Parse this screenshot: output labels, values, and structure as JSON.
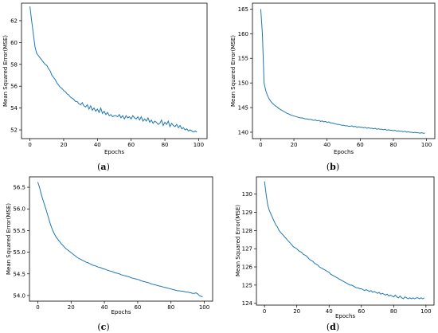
{
  "chart_data": [
    {
      "type": "line",
      "caption": "(a)",
      "xlabel": "Epochs",
      "ylabel": "Mean Squared Error(MSE)",
      "xlim": [
        -5,
        105
      ],
      "ylim": [
        51.2,
        63.6
      ],
      "xticks": [
        0,
        20,
        40,
        60,
        80,
        100
      ],
      "yticks": [
        52,
        54,
        56,
        58,
        60,
        62
      ],
      "series": [
        {
          "color": "#1f77b4",
          "x": [
            0,
            1,
            2,
            3,
            4,
            5,
            6,
            7,
            8,
            9,
            10,
            11,
            12,
            13,
            14,
            15,
            16,
            17,
            18,
            19,
            20,
            21,
            22,
            23,
            24,
            25,
            26,
            27,
            28,
            29,
            30,
            31,
            32,
            33,
            34,
            35,
            36,
            37,
            38,
            39,
            40,
            41,
            42,
            43,
            44,
            45,
            46,
            47,
            48,
            49,
            50,
            51,
            52,
            53,
            54,
            55,
            56,
            57,
            58,
            59,
            60,
            61,
            62,
            63,
            64,
            65,
            66,
            67,
            68,
            69,
            70,
            71,
            72,
            73,
            74,
            75,
            76,
            77,
            78,
            79,
            80,
            81,
            82,
            83,
            84,
            85,
            86,
            87,
            88,
            89,
            90,
            91,
            92,
            93,
            94,
            95,
            96,
            97,
            98,
            99
          ],
          "y": [
            63.3,
            62.0,
            60.8,
            59.6,
            59.0,
            58.8,
            58.6,
            58.4,
            58.2,
            58.0,
            57.9,
            57.6,
            57.4,
            57.0,
            56.8,
            56.6,
            56.3,
            56.1,
            55.9,
            55.8,
            55.6,
            55.5,
            55.3,
            55.2,
            55.0,
            54.9,
            54.8,
            54.6,
            54.6,
            54.4,
            54.3,
            54.5,
            54.2,
            54.1,
            54.3,
            53.9,
            54.2,
            53.8,
            54.0,
            53.7,
            53.9,
            53.6,
            54.0,
            53.5,
            53.7,
            53.4,
            53.6,
            53.3,
            53.4,
            53.2,
            53.3,
            53.3,
            53.2,
            53.4,
            53.1,
            53.3,
            53.0,
            53.3,
            53.1,
            53.2,
            53.0,
            53.3,
            53.1,
            53.0,
            53.2,
            52.9,
            53.2,
            52.8,
            53.0,
            52.8,
            53.1,
            52.7,
            52.9,
            52.6,
            52.8,
            52.7,
            52.5,
            52.6,
            52.9,
            52.4,
            52.7,
            52.5,
            52.8,
            52.3,
            52.6,
            52.4,
            52.3,
            52.5,
            52.2,
            52.4,
            52.1,
            52.2,
            52.0,
            52.1,
            51.9,
            52.0,
            51.9,
            51.8,
            51.9,
            51.8
          ]
        }
      ]
    },
    {
      "type": "line",
      "caption": "(b)",
      "xlabel": "Epochs",
      "ylabel": "Mean Squared Error(MSE)",
      "xlim": [
        -5,
        105
      ],
      "ylim": [
        138.7,
        166.2
      ],
      "xticks": [
        0,
        20,
        40,
        60,
        80,
        100
      ],
      "yticks": [
        140,
        145,
        150,
        155,
        160,
        165
      ],
      "series": [
        {
          "color": "#1f77b4",
          "x": [
            0,
            1,
            2,
            3,
            4,
            5,
            6,
            7,
            8,
            9,
            10,
            11,
            12,
            13,
            14,
            15,
            16,
            17,
            18,
            19,
            20,
            21,
            22,
            23,
            24,
            25,
            26,
            27,
            28,
            29,
            30,
            31,
            32,
            33,
            34,
            35,
            36,
            37,
            38,
            39,
            40,
            41,
            42,
            43,
            44,
            45,
            46,
            47,
            48,
            49,
            50,
            51,
            52,
            53,
            54,
            55,
            56,
            57,
            58,
            59,
            60,
            61,
            62,
            63,
            64,
            65,
            66,
            67,
            68,
            69,
            70,
            71,
            72,
            73,
            74,
            75,
            76,
            77,
            78,
            79,
            80,
            81,
            82,
            83,
            84,
            85,
            86,
            87,
            88,
            89,
            90,
            91,
            92,
            93,
            94,
            95,
            96,
            97,
            98,
            99
          ],
          "y": [
            165.0,
            160.0,
            150.0,
            148.5,
            147.5,
            146.8,
            146.3,
            145.9,
            145.6,
            145.3,
            145.1,
            144.8,
            144.6,
            144.4,
            144.2,
            144.0,
            143.8,
            143.7,
            143.5,
            143.4,
            143.3,
            143.2,
            143.1,
            143.0,
            142.9,
            142.9,
            142.8,
            142.7,
            142.7,
            142.6,
            142.6,
            142.5,
            142.4,
            142.5,
            142.3,
            142.4,
            142.2,
            142.3,
            142.1,
            142.2,
            142.0,
            142.1,
            141.9,
            141.9,
            141.8,
            141.7,
            141.6,
            141.6,
            141.5,
            141.4,
            141.4,
            141.3,
            141.3,
            141.2,
            141.2,
            141.3,
            141.1,
            141.2,
            141.0,
            141.1,
            141.0,
            141.0,
            140.9,
            141.0,
            140.8,
            140.9,
            140.8,
            140.8,
            140.7,
            140.8,
            140.6,
            140.7,
            140.6,
            140.6,
            140.5,
            140.6,
            140.4,
            140.5,
            140.4,
            140.4,
            140.3,
            140.4,
            140.2,
            140.3,
            140.2,
            140.2,
            140.1,
            140.2,
            140.0,
            140.1,
            140.0,
            140.0,
            139.9,
            140.0,
            139.9,
            139.9,
            139.8,
            139.9,
            139.8,
            139.8
          ]
        }
      ]
    },
    {
      "type": "line",
      "caption": "(c)",
      "xlabel": "Epochs",
      "ylabel": "Mean Squared Error(MSE)",
      "xlim": [
        -5,
        105
      ],
      "ylim": [
        53.87,
        56.74
      ],
      "xticks": [
        0,
        20,
        40,
        60,
        80,
        100
      ],
      "yticks": [
        54.0,
        54.5,
        55.0,
        55.5,
        56.0,
        56.5
      ],
      "series": [
        {
          "color": "#1f77b4",
          "x": [
            0,
            1,
            2,
            3,
            4,
            5,
            6,
            7,
            8,
            9,
            10,
            11,
            12,
            13,
            14,
            15,
            16,
            17,
            18,
            19,
            20,
            21,
            22,
            23,
            24,
            25,
            26,
            27,
            28,
            29,
            30,
            31,
            32,
            33,
            34,
            35,
            36,
            37,
            38,
            39,
            40,
            41,
            42,
            43,
            44,
            45,
            46,
            47,
            48,
            49,
            50,
            51,
            52,
            53,
            54,
            55,
            56,
            57,
            58,
            59,
            60,
            61,
            62,
            63,
            64,
            65,
            66,
            67,
            68,
            69,
            70,
            71,
            72,
            73,
            74,
            75,
            76,
            77,
            78,
            79,
            80,
            81,
            82,
            83,
            84,
            85,
            86,
            87,
            88,
            89,
            90,
            91,
            92,
            93,
            94,
            95,
            96,
            97,
            98,
            99
          ],
          "y": [
            56.62,
            56.5,
            56.35,
            56.22,
            56.1,
            55.98,
            55.85,
            55.72,
            55.6,
            55.5,
            55.42,
            55.35,
            55.3,
            55.25,
            55.2,
            55.16,
            55.12,
            55.08,
            55.05,
            55.02,
            54.99,
            54.96,
            54.93,
            54.9,
            54.87,
            54.85,
            54.83,
            54.81,
            54.79,
            54.77,
            54.76,
            54.74,
            54.72,
            54.7,
            54.69,
            54.68,
            54.66,
            54.65,
            54.64,
            54.62,
            54.61,
            54.6,
            54.58,
            54.57,
            54.56,
            54.55,
            54.53,
            54.52,
            54.51,
            54.5,
            54.48,
            54.47,
            54.46,
            54.45,
            54.44,
            54.43,
            54.41,
            54.4,
            54.39,
            54.38,
            54.37,
            54.36,
            54.34,
            54.33,
            54.32,
            54.31,
            54.3,
            54.29,
            54.27,
            54.26,
            54.25,
            54.24,
            54.23,
            54.22,
            54.21,
            54.2,
            54.19,
            54.18,
            54.17,
            54.16,
            54.15,
            54.14,
            54.13,
            54.12,
            54.11,
            54.11,
            54.1,
            54.1,
            54.09,
            54.08,
            54.08,
            54.07,
            54.06,
            54.05,
            54.05,
            54.06,
            54.04,
            54.0,
            53.98,
            53.97
          ]
        }
      ]
    },
    {
      "type": "line",
      "caption": "(d)",
      "xlabel": "Epochs",
      "ylabel": "Mean Squared Error(MSE)",
      "xlim": [
        -5,
        105
      ],
      "ylim": [
        123.9,
        130.95
      ],
      "xticks": [
        0,
        20,
        40,
        60,
        80,
        100
      ],
      "yticks": [
        124,
        125,
        126,
        127,
        128,
        129,
        130
      ],
      "series": [
        {
          "color": "#1f77b4",
          "x": [
            0,
            1,
            2,
            3,
            4,
            5,
            6,
            7,
            8,
            9,
            10,
            11,
            12,
            13,
            14,
            15,
            16,
            17,
            18,
            19,
            20,
            21,
            22,
            23,
            24,
            25,
            26,
            27,
            28,
            29,
            30,
            31,
            32,
            33,
            34,
            35,
            36,
            37,
            38,
            39,
            40,
            41,
            42,
            43,
            44,
            45,
            46,
            47,
            48,
            49,
            50,
            51,
            52,
            53,
            54,
            55,
            56,
            57,
            58,
            59,
            60,
            61,
            62,
            63,
            64,
            65,
            66,
            67,
            68,
            69,
            70,
            71,
            72,
            73,
            74,
            75,
            76,
            77,
            78,
            79,
            80,
            81,
            82,
            83,
            84,
            85,
            86,
            87,
            88,
            89,
            90,
            91,
            92,
            93,
            94,
            95,
            96,
            97,
            98,
            99
          ],
          "y": [
            130.7,
            130.0,
            129.4,
            129.1,
            128.9,
            128.7,
            128.5,
            128.3,
            128.2,
            128.0,
            127.9,
            127.8,
            127.7,
            127.6,
            127.5,
            127.4,
            127.3,
            127.2,
            127.1,
            127.05,
            127.0,
            126.9,
            126.85,
            126.8,
            126.7,
            126.65,
            126.6,
            126.5,
            126.4,
            126.35,
            126.3,
            126.2,
            126.15,
            126.1,
            126.0,
            125.95,
            125.9,
            125.85,
            125.8,
            125.75,
            125.7,
            125.6,
            125.55,
            125.5,
            125.45,
            125.4,
            125.35,
            125.3,
            125.25,
            125.2,
            125.15,
            125.1,
            125.05,
            125.0,
            125.0,
            124.95,
            124.9,
            124.85,
            124.85,
            124.8,
            124.8,
            124.75,
            124.7,
            124.75,
            124.7,
            124.65,
            124.7,
            124.6,
            124.65,
            124.6,
            124.55,
            124.6,
            124.5,
            124.55,
            124.5,
            124.45,
            124.5,
            124.4,
            124.45,
            124.4,
            124.35,
            124.45,
            124.35,
            124.3,
            124.4,
            124.3,
            124.25,
            124.35,
            124.3,
            124.25,
            124.3,
            124.25,
            124.3,
            124.25,
            124.3,
            124.3,
            124.25,
            124.3,
            124.25,
            124.3
          ]
        }
      ]
    }
  ]
}
